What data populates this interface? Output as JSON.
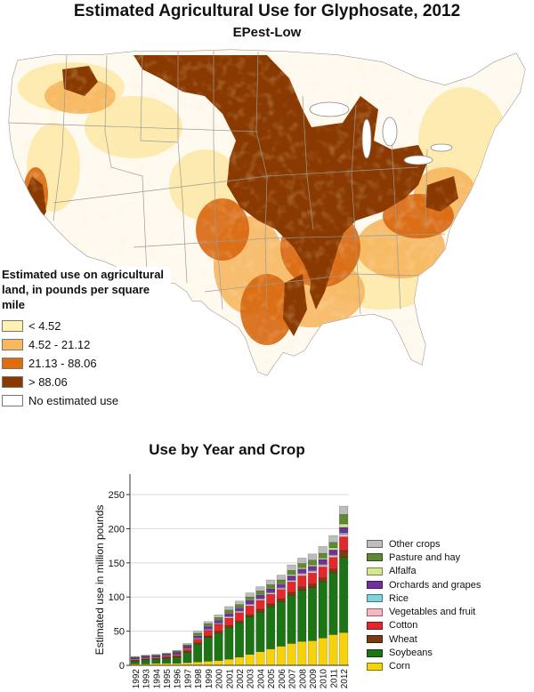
{
  "title": "Estimated Agricultural Use for Glyphosate, 2012",
  "subtitle": "EPest-Low",
  "map_legend": {
    "title": "Estimated use on agricultural land, in pounds per square mile",
    "items": [
      {
        "label": "< 4.52",
        "color": "#fff2b0"
      },
      {
        "label": "4.52 - 21.12",
        "color": "#f9b95b"
      },
      {
        "label": "21.13 - 88.06",
        "color": "#de6e0c"
      },
      {
        "label": "> 88.06",
        "color": "#8a3a00"
      },
      {
        "label": "No estimated use",
        "color": "#ffffff"
      }
    ]
  },
  "chart_data": {
    "type": "bar",
    "stacked": true,
    "title": "Use by Year and Crop",
    "ylabel": "Estimated use in million pounds",
    "xlabel": "",
    "ylim": [
      0,
      280
    ],
    "yticks": [
      0,
      50,
      100,
      150,
      200,
      250
    ],
    "grid": true,
    "legend_position": "right",
    "categories": [
      "1992",
      "1993",
      "1994",
      "1995",
      "1996",
      "1997",
      "1998",
      "1999",
      "2000",
      "2001",
      "2002",
      "2003",
      "2004",
      "2005",
      "2006",
      "2007",
      "2008",
      "2009",
      "2010",
      "2011",
      "2012"
    ],
    "series": [
      {
        "name": "Corn",
        "color": "#f5d20c",
        "values": [
          2,
          2,
          3,
          3,
          3,
          4,
          5,
          6,
          7,
          9,
          12,
          16,
          20,
          24,
          28,
          32,
          35,
          36,
          40,
          45,
          48
        ]
      },
      {
        "name": "Soybeans",
        "color": "#1d7414",
        "values": [
          4,
          6,
          6,
          7,
          9,
          15,
          26,
          35,
          40,
          46,
          50,
          55,
          58,
          62,
          65,
          70,
          75,
          78,
          82,
          90,
          110
        ]
      },
      {
        "name": "Wheat",
        "color": "#7a3a12",
        "values": [
          1,
          1,
          1,
          1,
          1,
          2,
          2,
          2,
          3,
          3,
          3,
          3,
          4,
          4,
          4,
          5,
          5,
          5,
          6,
          6,
          10
        ]
      },
      {
        "name": "Cotton",
        "color": "#e2282a",
        "values": [
          1,
          1,
          1,
          2,
          2,
          3,
          5,
          8,
          10,
          11,
          12,
          13,
          13,
          14,
          14,
          15,
          16,
          16,
          16,
          17,
          20
        ]
      },
      {
        "name": "Vegetables and fruit",
        "color": "#f9b7c0",
        "values": [
          1,
          1,
          1,
          1,
          1,
          1,
          1,
          1,
          1,
          2,
          2,
          2,
          2,
          2,
          2,
          2,
          3,
          3,
          3,
          3,
          4
        ]
      },
      {
        "name": "Rice",
        "color": "#7fd3dd",
        "values": [
          0,
          0,
          0,
          0,
          0,
          0,
          1,
          1,
          1,
          1,
          1,
          1,
          1,
          1,
          1,
          1,
          1,
          1,
          1,
          1,
          2
        ]
      },
      {
        "name": "Orchards and grapes",
        "color": "#7030a0",
        "values": [
          2,
          2,
          2,
          2,
          3,
          3,
          3,
          4,
          4,
          4,
          4,
          5,
          5,
          5,
          5,
          6,
          6,
          6,
          7,
          7,
          8
        ]
      },
      {
        "name": "Alfalfa",
        "color": "#d6e98a",
        "values": [
          0,
          0,
          0,
          0,
          0,
          0,
          1,
          1,
          1,
          1,
          1,
          1,
          1,
          1,
          1,
          2,
          2,
          2,
          2,
          3,
          5
        ]
      },
      {
        "name": "Pasture and hay",
        "color": "#5e8a33",
        "values": [
          1,
          1,
          1,
          1,
          2,
          2,
          3,
          3,
          3,
          4,
          4,
          4,
          5,
          5,
          5,
          6,
          6,
          7,
          7,
          8,
          14
        ]
      },
      {
        "name": "Other crops",
        "color": "#bdbdbd",
        "values": [
          1,
          1,
          1,
          1,
          1,
          2,
          3,
          3,
          4,
          5,
          5,
          6,
          6,
          7,
          7,
          8,
          8,
          9,
          10,
          10,
          12
        ]
      }
    ]
  }
}
